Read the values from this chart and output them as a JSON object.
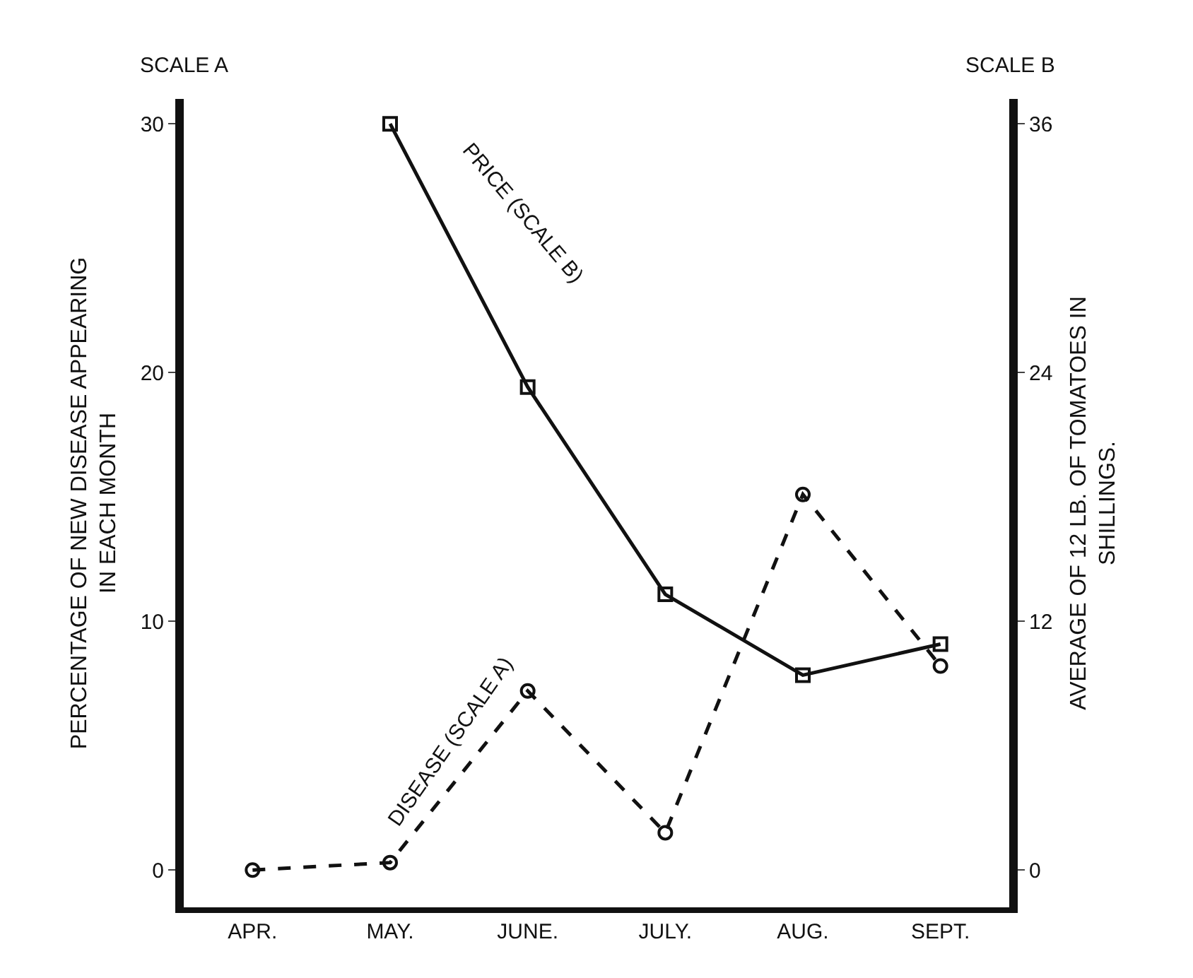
{
  "chart_data": {
    "type": "line",
    "categories": [
      "APR.",
      "MAY.",
      "JUNE.",
      "JULY.",
      "AUG.",
      "SEPT."
    ],
    "series": [
      {
        "name": "PRICE (SCALE B)",
        "color": "#111111",
        "axis": "y2",
        "marker": "square",
        "line_style": "solid",
        "values": [
          null,
          36,
          23.3,
          13.3,
          9.4,
          10.9
        ]
      },
      {
        "name": "DISEASE (SCALE A)",
        "color": "#111111",
        "axis": "y",
        "marker": "circle",
        "line_style": "dashed",
        "values": [
          0,
          0.3,
          7.2,
          1.5,
          15.1,
          8.2
        ]
      }
    ],
    "ylabel": "PERCENTAGE OF NEW DISEASE APPEARING\nIN EACH MONTH",
    "y2label": "AVERAGE OF 12 LB. OF TOMATOES IN\nSHILLINGS.",
    "annotations": [
      "SCALE A",
      "SCALE B"
    ],
    "ylim": [
      -1.5,
      31
    ],
    "yticks": [
      0,
      10,
      20,
      30
    ],
    "y2lim": [
      -1.8,
      37.2
    ],
    "y2ticks": [
      0,
      12,
      24,
      36
    ]
  }
}
